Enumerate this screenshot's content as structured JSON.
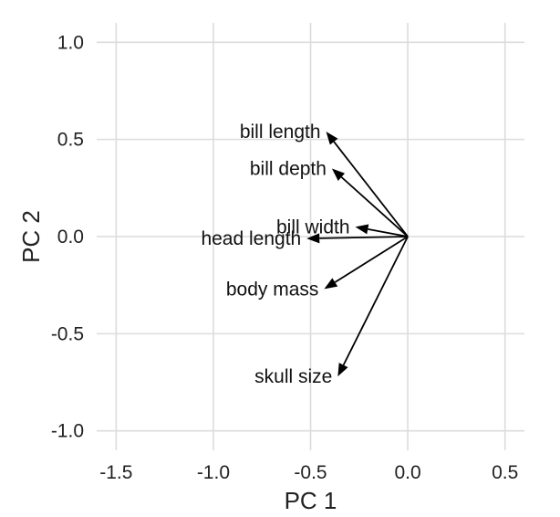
{
  "chart_data": {
    "type": "biplot-loadings",
    "xlabel": "PC 1",
    "ylabel": "PC 2",
    "xlim": [
      -1.6,
      0.6
    ],
    "ylim": [
      -1.1,
      1.1
    ],
    "x_ticks": [
      -1.5,
      -1.0,
      -0.5,
      0.0,
      0.5
    ],
    "x_tick_labels": [
      "-1.5",
      "-1.0",
      "-0.5",
      "0.0",
      "0.5"
    ],
    "y_ticks": [
      -1.0,
      -0.5,
      0.0,
      0.5,
      1.0
    ],
    "y_tick_labels": [
      "-1.0",
      "-0.5",
      "0.0",
      "0.5",
      "1.0"
    ],
    "grid": true,
    "origin": [
      0,
      0
    ],
    "vectors": [
      {
        "label": "bill length",
        "x": -0.42,
        "y": 0.54
      },
      {
        "label": "bill depth",
        "x": -0.39,
        "y": 0.35
      },
      {
        "label": "bill width",
        "x": -0.27,
        "y": 0.05
      },
      {
        "label": "head length",
        "x": -0.52,
        "y": -0.01
      },
      {
        "label": "body mass",
        "x": -0.43,
        "y": -0.27
      },
      {
        "label": "skull size",
        "x": -0.36,
        "y": -0.72
      }
    ]
  }
}
